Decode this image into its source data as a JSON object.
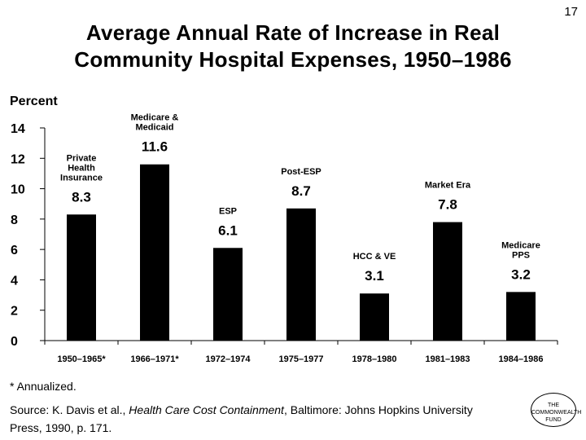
{
  "page_number": "17",
  "title_line1": "Average Annual Rate of Increase in Real",
  "title_line2": "Community Hospital Expenses, 1950–1986",
  "footnote": "* Annualized.",
  "source": {
    "prefix": "Source: K. Davis et al., ",
    "book_title": "Health Care Cost Containment",
    "suffix": ", Baltimore: Johns Hopkins University Press, 1990, p. 171."
  },
  "logo": {
    "line1": "THE",
    "line2": "COMMONWEALTH",
    "line3": "FUND"
  },
  "chart_data": {
    "type": "bar",
    "title": "Average Annual Rate of Increase in Real Community Hospital Expenses, 1950–1986",
    "ylabel": "Percent",
    "xlabel": "",
    "ylim": [
      0,
      14
    ],
    "yticks": [
      0,
      2,
      4,
      6,
      8,
      10,
      12,
      14
    ],
    "categories": [
      "1950–1965*",
      "1966–1971*",
      "1972–1974",
      "1975–1977",
      "1978–1980",
      "1981–1983",
      "1984–1986"
    ],
    "values": [
      8.3,
      11.6,
      6.1,
      8.7,
      3.1,
      7.8,
      3.2
    ],
    "value_labels": [
      "8.3",
      "11.6",
      "6.1",
      "8.7",
      "3.1",
      "7.8",
      "3.2"
    ],
    "annotations": [
      [
        "Private",
        "Health",
        "Insurance"
      ],
      [
        "Medicare &",
        "Medicaid"
      ],
      [
        "ESP"
      ],
      [
        "Post-ESP"
      ],
      [
        "HCC & VE"
      ],
      [
        "Market Era"
      ],
      [
        "Medicare",
        "PPS"
      ]
    ],
    "bar_color": "#000000",
    "grid": false,
    "legend": "none"
  }
}
